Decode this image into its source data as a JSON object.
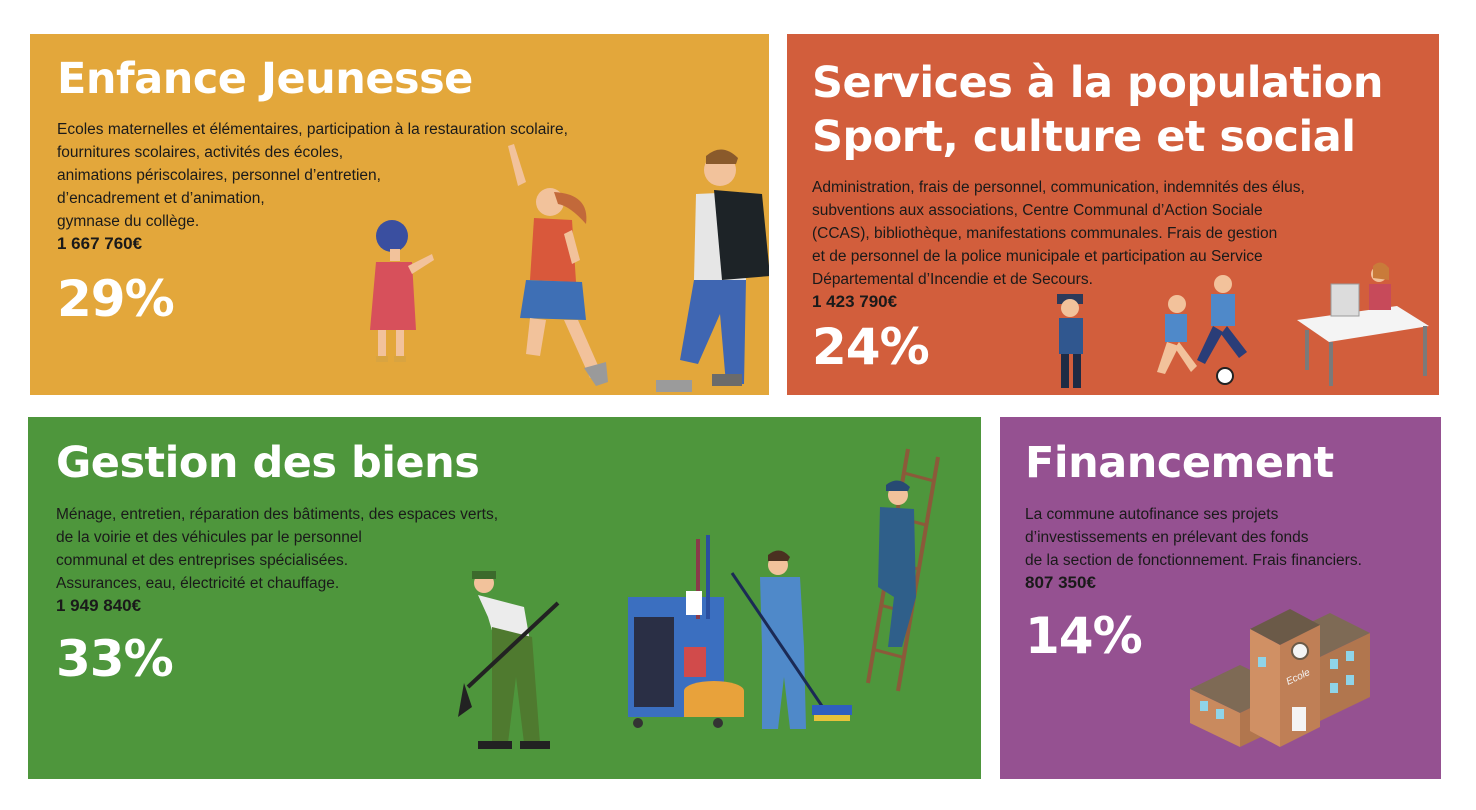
{
  "colors": {
    "enfance": "#e3a73b",
    "services": "#d25e3c",
    "gestion": "#4e963c",
    "financement": "#955191"
  },
  "cards": [
    {
      "title": "Enfance Jeunesse",
      "description": "Ecoles maternelles et élémentaires, participation à la restauration scolaire,\nfournitures scolaires, activités des écoles,\nanimations périscolaires, personnel d’entretien,\nd’encadrement et d’animation,\ngymnase du collège.",
      "amount": "1 667 760€",
      "percent": "29%",
      "illustration": "children-illustration"
    },
    {
      "title_line1": "Services à la population",
      "title_line2": "Sport, culture et social",
      "description": "Administration, frais de personnel, communication, indemnités des élus,\nsubventions aux associations, Centre Communal d’Action Sociale\n(CCAS), bibliothèque, manifestations communales. Frais de gestion\net de personnel de la police municipale et participation au Service\nDépartemental d’Incendie et de Secours.",
      "amount": "1 423 790€",
      "percent": "24%",
      "illustration": "police-football-office-illustration"
    },
    {
      "title": "Gestion des biens",
      "description": "Ménage, entretien, réparation des bâtiments, des espaces verts,\nde la voirie et des véhicules par le personnel\ncommunal et des entreprises spécialisées.\nAssurances, eau, électricité et chauffage.",
      "amount": "1 949 840€",
      "percent": "33%",
      "illustration": "maintenance-workers-illustration"
    },
    {
      "title": "Financement",
      "description": "La commune autofinance ses projets\nd’investissements en prélevant des fonds\nde la section de fonctionnement. Frais financiers.",
      "amount": "807 350€",
      "percent": "14%",
      "illustration": "school-building-illustration",
      "sign": "Ecole"
    }
  ]
}
